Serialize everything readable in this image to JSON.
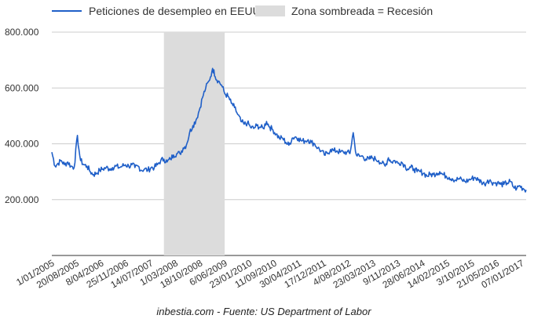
{
  "chart_data": {
    "type": "line",
    "legend": [
      {
        "label": "Peticiones de desempleo en EEUU",
        "kind": "line",
        "color": "#1f5fc8"
      },
      {
        "label": "Zona sombreada = Recesión",
        "kind": "area",
        "color": "#dcdcdc"
      }
    ],
    "legend_position": "top-left",
    "ylim": [
      0,
      800000
    ],
    "yticks": [
      200000,
      400000,
      600000,
      800000
    ],
    "ytick_labels": [
      "200.000",
      "400.000",
      "600.000",
      "800.000"
    ],
    "xtick_labels": [
      "1/01/2005",
      "20/08/2005",
      "8/04/2006",
      "25/11/2006",
      "14/07/2007",
      "1/03/2008",
      "18/10/2008",
      "6/06/2009",
      "23/01/2010",
      "11/09/2010",
      "30/04/2011",
      "17/12/2011",
      "4/08/2012",
      "23/03/2013",
      "9/11/2013",
      "28/06/2014",
      "14/02/2015",
      "3/10/2015",
      "21/05/2016",
      "07/01/2017"
    ],
    "recession_shade": {
      "start": "2007-12-01",
      "end": "2009-06-30"
    },
    "series": [
      {
        "name": "Peticiones de desempleo en EEUU",
        "color": "#1f5fc8",
        "points": [
          [
            "2005-01-01",
            370000
          ],
          [
            "2005-02-01",
            320000
          ],
          [
            "2005-03-01",
            330000
          ],
          [
            "2005-04-01",
            340000
          ],
          [
            "2005-05-01",
            325000
          ],
          [
            "2005-06-01",
            335000
          ],
          [
            "2005-07-01",
            320000
          ],
          [
            "2005-08-01",
            315000
          ],
          [
            "2005-09-01",
            430000
          ],
          [
            "2005-09-15",
            380000
          ],
          [
            "2005-10-01",
            340000
          ],
          [
            "2005-11-01",
            325000
          ],
          [
            "2005-12-01",
            320000
          ],
          [
            "2006-01-01",
            300000
          ],
          [
            "2006-02-01",
            290000
          ],
          [
            "2006-03-01",
            295000
          ],
          [
            "2006-04-01",
            305000
          ],
          [
            "2006-05-01",
            310000
          ],
          [
            "2006-06-01",
            315000
          ],
          [
            "2006-07-01",
            310000
          ],
          [
            "2006-08-01",
            315000
          ],
          [
            "2006-09-01",
            320000
          ],
          [
            "2006-10-01",
            315000
          ],
          [
            "2006-11-01",
            320000
          ],
          [
            "2006-12-01",
            325000
          ],
          [
            "2007-01-01",
            320000
          ],
          [
            "2007-02-01",
            325000
          ],
          [
            "2007-03-01",
            315000
          ],
          [
            "2007-04-01",
            320000
          ],
          [
            "2007-05-01",
            305000
          ],
          [
            "2007-06-01",
            310000
          ],
          [
            "2007-07-01",
            305000
          ],
          [
            "2007-08-01",
            315000
          ],
          [
            "2007-09-01",
            315000
          ],
          [
            "2007-10-01",
            325000
          ],
          [
            "2007-11-01",
            340000
          ],
          [
            "2007-12-01",
            345000
          ],
          [
            "2008-01-01",
            335000
          ],
          [
            "2008-02-01",
            345000
          ],
          [
            "2008-03-01",
            360000
          ],
          [
            "2008-04-01",
            365000
          ],
          [
            "2008-05-01",
            365000
          ],
          [
            "2008-06-01",
            385000
          ],
          [
            "2008-07-01",
            395000
          ],
          [
            "2008-08-01",
            440000
          ],
          [
            "2008-09-01",
            465000
          ],
          [
            "2008-10-01",
            485000
          ],
          [
            "2008-11-01",
            520000
          ],
          [
            "2008-12-01",
            565000
          ],
          [
            "2009-01-01",
            600000
          ],
          [
            "2009-02-01",
            625000
          ],
          [
            "2009-03-01",
            660000
          ],
          [
            "2009-03-20",
            665000
          ],
          [
            "2009-04-01",
            640000
          ],
          [
            "2009-05-01",
            625000
          ],
          [
            "2009-06-01",
            610000
          ],
          [
            "2009-07-01",
            580000
          ],
          [
            "2009-08-01",
            570000
          ],
          [
            "2009-09-01",
            545000
          ],
          [
            "2009-10-01",
            530000
          ],
          [
            "2009-11-01",
            505000
          ],
          [
            "2009-12-01",
            480000
          ],
          [
            "2010-01-01",
            470000
          ],
          [
            "2010-02-01",
            475000
          ],
          [
            "2010-03-01",
            460000
          ],
          [
            "2010-04-01",
            455000
          ],
          [
            "2010-05-01",
            465000
          ],
          [
            "2010-06-01",
            460000
          ],
          [
            "2010-07-01",
            455000
          ],
          [
            "2010-08-01",
            480000
          ],
          [
            "2010-09-01",
            460000
          ],
          [
            "2010-10-01",
            450000
          ],
          [
            "2010-11-01",
            435000
          ],
          [
            "2010-12-01",
            420000
          ],
          [
            "2011-01-01",
            420000
          ],
          [
            "2011-02-01",
            405000
          ],
          [
            "2011-03-01",
            395000
          ],
          [
            "2011-04-01",
            420000
          ],
          [
            "2011-05-01",
            425000
          ],
          [
            "2011-06-01",
            420000
          ],
          [
            "2011-07-01",
            410000
          ],
          [
            "2011-08-01",
            410000
          ],
          [
            "2011-09-01",
            415000
          ],
          [
            "2011-10-01",
            405000
          ],
          [
            "2011-11-01",
            400000
          ],
          [
            "2011-12-01",
            385000
          ],
          [
            "2012-01-01",
            375000
          ],
          [
            "2012-02-01",
            360000
          ],
          [
            "2012-03-01",
            365000
          ],
          [
            "2012-04-01",
            380000
          ],
          [
            "2012-05-01",
            375000
          ],
          [
            "2012-06-01",
            375000
          ],
          [
            "2012-07-01",
            370000
          ],
          [
            "2012-08-01",
            370000
          ],
          [
            "2012-09-01",
            370000
          ],
          [
            "2012-10-01",
            365000
          ],
          [
            "2012-11-01",
            440000
          ],
          [
            "2012-11-15",
            400000
          ],
          [
            "2012-12-01",
            360000
          ],
          [
            "2013-01-01",
            355000
          ],
          [
            "2013-02-01",
            355000
          ],
          [
            "2013-03-01",
            345000
          ],
          [
            "2013-04-01",
            345000
          ],
          [
            "2013-05-01",
            350000
          ],
          [
            "2013-06-01",
            345000
          ],
          [
            "2013-07-01",
            340000
          ],
          [
            "2013-08-01",
            330000
          ],
          [
            "2013-09-01",
            320000
          ],
          [
            "2013-10-01",
            350000
          ],
          [
            "2013-11-01",
            335000
          ],
          [
            "2013-12-01",
            340000
          ],
          [
            "2014-01-01",
            330000
          ],
          [
            "2014-02-01",
            335000
          ],
          [
            "2014-03-01",
            325000
          ],
          [
            "2014-04-01",
            310000
          ],
          [
            "2014-05-01",
            315000
          ],
          [
            "2014-06-01",
            310000
          ],
          [
            "2014-07-01",
            300000
          ],
          [
            "2014-08-01",
            300000
          ],
          [
            "2014-09-01",
            295000
          ],
          [
            "2014-10-01",
            285000
          ],
          [
            "2014-11-01",
            290000
          ],
          [
            "2014-12-01",
            290000
          ],
          [
            "2015-01-01",
            295000
          ],
          [
            "2015-02-01",
            300000
          ],
          [
            "2015-03-01",
            290000
          ],
          [
            "2015-04-01",
            285000
          ],
          [
            "2015-05-01",
            280000
          ],
          [
            "2015-06-01",
            275000
          ],
          [
            "2015-07-01",
            270000
          ],
          [
            "2015-08-01",
            275000
          ],
          [
            "2015-09-01",
            270000
          ],
          [
            "2015-10-01",
            265000
          ],
          [
            "2015-11-01",
            270000
          ],
          [
            "2015-12-01",
            275000
          ],
          [
            "2016-01-01",
            280000
          ],
          [
            "2016-02-01",
            270000
          ],
          [
            "2016-03-01",
            265000
          ],
          [
            "2016-04-01",
            255000
          ],
          [
            "2016-05-01",
            270000
          ],
          [
            "2016-06-01",
            265000
          ],
          [
            "2016-07-01",
            260000
          ],
          [
            "2016-08-01",
            260000
          ],
          [
            "2016-09-01",
            255000
          ],
          [
            "2016-10-01",
            255000
          ],
          [
            "2016-11-01",
            260000
          ],
          [
            "2016-12-01",
            265000
          ],
          [
            "2017-01-01",
            245000
          ],
          [
            "2017-02-01",
            240000
          ],
          [
            "2017-03-01",
            250000
          ],
          [
            "2017-04-01",
            240000
          ],
          [
            "2017-05-01",
            235000
          ]
        ]
      }
    ],
    "grid": "horizontal",
    "source": "inbestia.com - Fuente: US Department of Labor"
  }
}
